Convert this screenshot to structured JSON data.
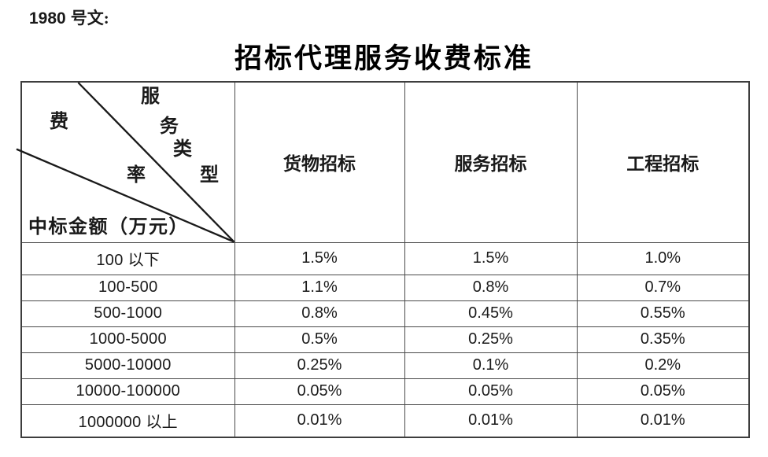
{
  "doc_ref": {
    "number": "1980",
    "label": "号文:"
  },
  "title": "招标代理服务收费标准",
  "table": {
    "corner": {
      "axis_top": "服务类型",
      "axis_left": "费率",
      "axis_bottom": "中标金额（万元）"
    },
    "columns": [
      "货物招标",
      "服务招标",
      "工程招标"
    ],
    "rows": [
      {
        "label": "100 以下",
        "values": [
          "1.5%",
          "1.5%",
          "1.0%"
        ]
      },
      {
        "label": "100-500",
        "values": [
          "1.1%",
          "0.8%",
          "0.7%"
        ]
      },
      {
        "label": "500-1000",
        "values": [
          "0.8%",
          "0.45%",
          "0.55%"
        ]
      },
      {
        "label": "1000-5000",
        "values": [
          "0.5%",
          "0.25%",
          "0.35%"
        ]
      },
      {
        "label": "5000-10000",
        "values": [
          "0.25%",
          "0.1%",
          "0.2%"
        ]
      },
      {
        "label": "10000-100000",
        "values": [
          "0.05%",
          "0.05%",
          "0.05%"
        ]
      },
      {
        "label": "1000000 以上",
        "values": [
          "0.01%",
          "0.01%",
          "0.01%"
        ]
      }
    ]
  },
  "colors": {
    "text": "#1a1a1a",
    "border": "#4a4a4a",
    "background": "#ffffff"
  }
}
